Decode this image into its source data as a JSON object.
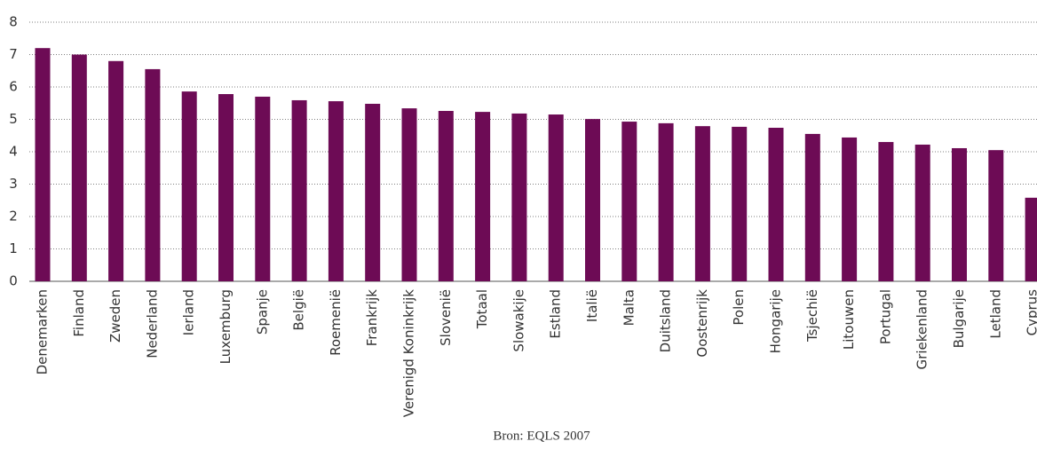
{
  "chart_data": {
    "type": "bar",
    "categories": [
      "Denemarken",
      "Finland",
      "Zweden",
      "Nederland",
      "Ierland",
      "Luxemburg",
      "Spanje",
      "België",
      "Roemenië",
      "Frankrijk",
      "Verenigd Koninkrijk",
      "Slovenië",
      "Totaal",
      "Slowakije",
      "Estland",
      "Italië",
      "Malta",
      "Duitsland",
      "Oostenrijk",
      "Polen",
      "Hongarije",
      "Tsjechië",
      "Litouwen",
      "Portugal",
      "Griekenland",
      "Bulgarije",
      "Letland",
      "Cyprus"
    ],
    "values": [
      7.2,
      7.0,
      6.8,
      6.55,
      5.86,
      5.78,
      5.7,
      5.59,
      5.56,
      5.48,
      5.34,
      5.26,
      5.23,
      5.18,
      5.15,
      5.01,
      4.93,
      4.88,
      4.79,
      4.77,
      4.74,
      4.55,
      4.44,
      4.3,
      4.22,
      4.11,
      4.05,
      2.58
    ],
    "color": "#6d0b55",
    "ylim": [
      0,
      8
    ],
    "yticks": [
      0,
      1,
      2,
      3,
      4,
      5,
      6,
      7,
      8
    ],
    "grid": true,
    "source": "Bron: EQLS 2007"
  }
}
